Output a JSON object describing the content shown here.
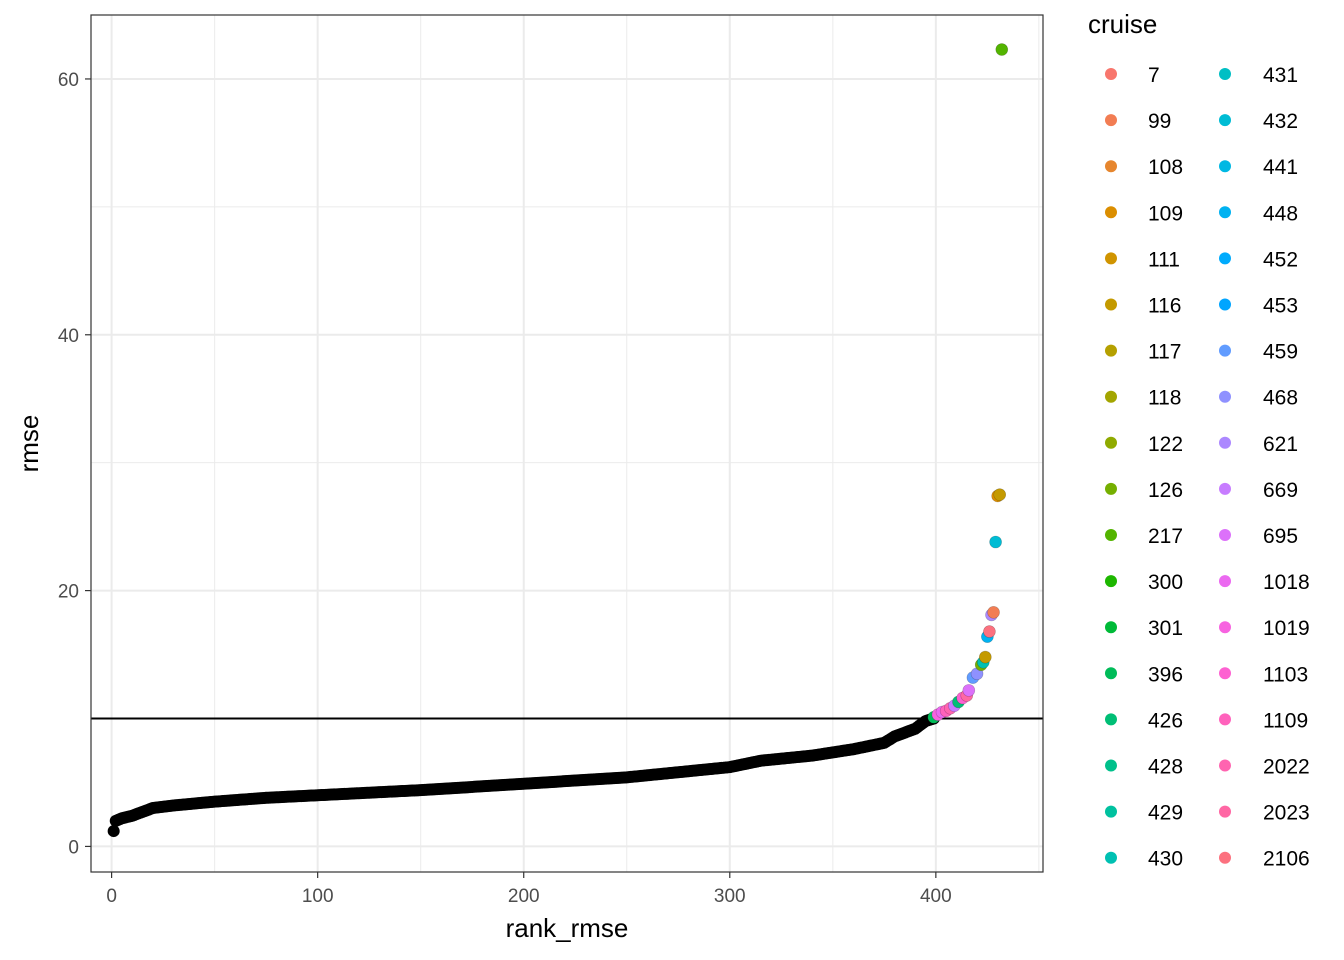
{
  "chart_data": {
    "type": "scatter",
    "xlabel": "rank_rmse",
    "ylabel": "rmse",
    "xlim": [
      -10,
      452
    ],
    "ylim": [
      -2,
      65
    ],
    "x_ticks": [
      0,
      100,
      200,
      300,
      400
    ],
    "y_ticks": [
      0,
      20,
      40,
      60
    ],
    "grid": true,
    "threshold_line": {
      "y": 10
    },
    "below_threshold_color": "#000000",
    "baseline_curve": [
      [
        1,
        1.2
      ],
      [
        2,
        2.0
      ],
      [
        5,
        2.2
      ],
      [
        10,
        2.4
      ],
      [
        15,
        2.7
      ],
      [
        20,
        3.0
      ],
      [
        30,
        3.2
      ],
      [
        50,
        3.5
      ],
      [
        75,
        3.8
      ],
      [
        100,
        4.0
      ],
      [
        150,
        4.4
      ],
      [
        200,
        4.9
      ],
      [
        250,
        5.4
      ],
      [
        300,
        6.2
      ],
      [
        315,
        6.7
      ],
      [
        340,
        7.1
      ],
      [
        360,
        7.6
      ],
      [
        375,
        8.1
      ],
      [
        380,
        8.6
      ],
      [
        385,
        8.9
      ],
      [
        390,
        9.2
      ],
      [
        395,
        9.8
      ],
      [
        399,
        10.0
      ]
    ],
    "highlight_points": [
      [
        399,
        10.1,
        "396"
      ],
      [
        401,
        10.3,
        "1019"
      ],
      [
        403,
        10.5,
        "1018"
      ],
      [
        405,
        10.6,
        "1109"
      ],
      [
        407,
        10.8,
        "2022"
      ],
      [
        409,
        11.0,
        "669"
      ],
      [
        411,
        11.3,
        "426"
      ],
      [
        413,
        11.6,
        "1103"
      ],
      [
        415,
        11.8,
        "2023"
      ],
      [
        416,
        12.2,
        "695"
      ],
      [
        418,
        13.2,
        "459"
      ],
      [
        420,
        13.5,
        "468"
      ],
      [
        422,
        14.2,
        "126"
      ],
      [
        423,
        14.4,
        "430"
      ],
      [
        424,
        14.8,
        "116"
      ],
      [
        425,
        16.4,
        "448"
      ],
      [
        426,
        16.8,
        "2106"
      ],
      [
        427,
        18.1,
        "621"
      ],
      [
        428,
        18.3,
        "99"
      ],
      [
        429,
        23.8,
        "432"
      ],
      [
        430,
        27.4,
        "109"
      ],
      [
        431,
        27.5,
        "116"
      ],
      [
        432,
        62.3,
        "217"
      ]
    ]
  },
  "legend": {
    "title": "cruise",
    "items": [
      {
        "label": "7",
        "color": "#F8766D"
      },
      {
        "label": "99",
        "color": "#F27D53"
      },
      {
        "label": "108",
        "color": "#E6862E"
      },
      {
        "label": "109",
        "color": "#DB8E00"
      },
      {
        "label": "111",
        "color": "#D09400"
      },
      {
        "label": "116",
        "color": "#C49A00"
      },
      {
        "label": "117",
        "color": "#B5A000"
      },
      {
        "label": "118",
        "color": "#A3A500"
      },
      {
        "label": "122",
        "color": "#8FAA00"
      },
      {
        "label": "126",
        "color": "#75AF00"
      },
      {
        "label": "217",
        "color": "#53B400"
      },
      {
        "label": "300",
        "color": "#1DB700"
      },
      {
        "label": "301",
        "color": "#00BA38"
      },
      {
        "label": "396",
        "color": "#00BC59"
      },
      {
        "label": "426",
        "color": "#00BE75"
      },
      {
        "label": "428",
        "color": "#00C08B"
      },
      {
        "label": "429",
        "color": "#00C19F"
      },
      {
        "label": "430",
        "color": "#00C0B2"
      },
      {
        "label": "431",
        "color": "#00BFC4"
      },
      {
        "label": "432",
        "color": "#00BCD4"
      },
      {
        "label": "441",
        "color": "#00B8E3"
      },
      {
        "label": "448",
        "color": "#00B2F1"
      },
      {
        "label": "452",
        "color": "#00ABFD"
      },
      {
        "label": "453",
        "color": "#00A5FF"
      },
      {
        "label": "459",
        "color": "#619CFF"
      },
      {
        "label": "468",
        "color": "#8F91FF"
      },
      {
        "label": "621",
        "color": "#AC88FF"
      },
      {
        "label": "669",
        "color": "#C77CFF"
      },
      {
        "label": "695",
        "color": "#DC71FA"
      },
      {
        "label": "1018",
        "color": "#EB69F0"
      },
      {
        "label": "1019",
        "color": "#F763E0"
      },
      {
        "label": "1103",
        "color": "#FD61D1"
      },
      {
        "label": "1109",
        "color": "#FF62BC"
      },
      {
        "label": "2022",
        "color": "#FF64B0"
      },
      {
        "label": "2023",
        "color": "#FF67A4"
      },
      {
        "label": "2106",
        "color": "#FC717F"
      }
    ]
  }
}
